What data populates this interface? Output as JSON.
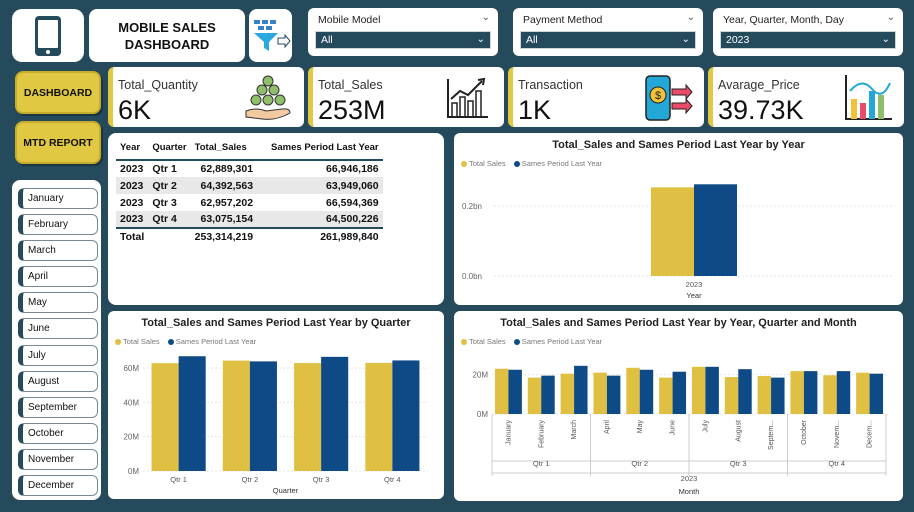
{
  "header": {
    "title_line1": "MOBILE SALES",
    "title_line2": "DASHBOARD"
  },
  "slicers": [
    {
      "label": "Mobile Model",
      "value": "All"
    },
    {
      "label": "Payment Method",
      "value": "All"
    },
    {
      "label": "Year, Quarter, Month, Day",
      "value": "2023"
    }
  ],
  "nav": {
    "dashboard": "DASHBOARD",
    "mtd_report": "MTD REPORT"
  },
  "months": [
    "January",
    "February",
    "March",
    "April",
    "May",
    "June",
    "July",
    "August",
    "September",
    "October",
    "November",
    "December"
  ],
  "kpis": [
    {
      "title": "Total_Quantity",
      "value": "6K",
      "icon": "coins-hand-icon"
    },
    {
      "title": "Total_Sales",
      "value": "253M",
      "icon": "growth-chart-icon"
    },
    {
      "title": "Transaction",
      "value": "1K",
      "icon": "mobile-payment-icon"
    },
    {
      "title": "Avarage_Price",
      "value": "39.73K",
      "icon": "bar-chart-icon"
    }
  ],
  "colors": {
    "accent": "#e0c843",
    "brand": "#244a5c",
    "series_current": "#e0c043",
    "series_last": "#0e4a86"
  },
  "table": {
    "headers": [
      "Year",
      "Quarter",
      "Total_Sales",
      "Sames Period Last Year"
    ],
    "rows": [
      [
        "2023",
        "Qtr 1",
        "62,889,301",
        "66,946,186"
      ],
      [
        "2023",
        "Qtr 2",
        "64,392,563",
        "63,949,060"
      ],
      [
        "2023",
        "Qtr 3",
        "62,957,202",
        "66,594,369"
      ],
      [
        "2023",
        "Qtr 4",
        "63,075,154",
        "64,500,226"
      ]
    ],
    "total": [
      "Total",
      "",
      "253,314,219",
      "261,989,840"
    ]
  },
  "chart_data": [
    {
      "type": "bar",
      "title": "Total_Sales and Sames Period Last Year by Year",
      "categories": [
        "2023"
      ],
      "series": [
        {
          "name": "Total Sales",
          "values": [
            253314219
          ]
        },
        {
          "name": "Sames Period Last Year",
          "values": [
            261989840
          ]
        }
      ],
      "xlabel": "Year",
      "ylabel": "",
      "yticks": [
        "0.0bn",
        "0.2bn"
      ],
      "ylim": [
        0,
        300000000
      ]
    },
    {
      "type": "bar",
      "title": "Total_Sales and Sames Period Last Year by Quarter",
      "categories": [
        "Qtr 1",
        "Qtr 2",
        "Qtr 3",
        "Qtr 4"
      ],
      "series": [
        {
          "name": "Total Sales",
          "values": [
            62889301,
            64392563,
            62957202,
            63075154
          ]
        },
        {
          "name": "Sames Period Last Year",
          "values": [
            66946186,
            63949060,
            66594369,
            64500226
          ]
        }
      ],
      "xlabel": "Quarter",
      "ylabel": "",
      "yticks": [
        "0M",
        "20M",
        "40M",
        "60M"
      ],
      "ylim": [
        0,
        70000000
      ]
    },
    {
      "type": "bar",
      "title": "Total_Sales and Sames Period Last Year by Year, Quarter and Month",
      "categories": [
        "January",
        "February",
        "March",
        "April",
        "May",
        "June",
        "July",
        "August",
        "Septem...",
        "October",
        "Novem...",
        "Decem..."
      ],
      "quarters": [
        "Qtr 1",
        "Qtr 2",
        "Qtr 3",
        "Qtr 4"
      ],
      "year": "2023",
      "series": [
        {
          "name": "Total Sales",
          "values": [
            23000000,
            18500000,
            20500000,
            21000000,
            23500000,
            18500000,
            24000000,
            18800000,
            19300000,
            21800000,
            19700000,
            21000000
          ]
        },
        {
          "name": "Sames Period Last Year",
          "values": [
            22500000,
            19500000,
            24500000,
            19500000,
            22500000,
            21500000,
            24000000,
            22800000,
            18500000,
            21800000,
            21800000,
            20500000
          ]
        }
      ],
      "xlabel": "Month",
      "ylabel": "",
      "yticks": [
        "0M",
        "20M"
      ],
      "ylim": [
        0,
        30000000
      ]
    }
  ]
}
